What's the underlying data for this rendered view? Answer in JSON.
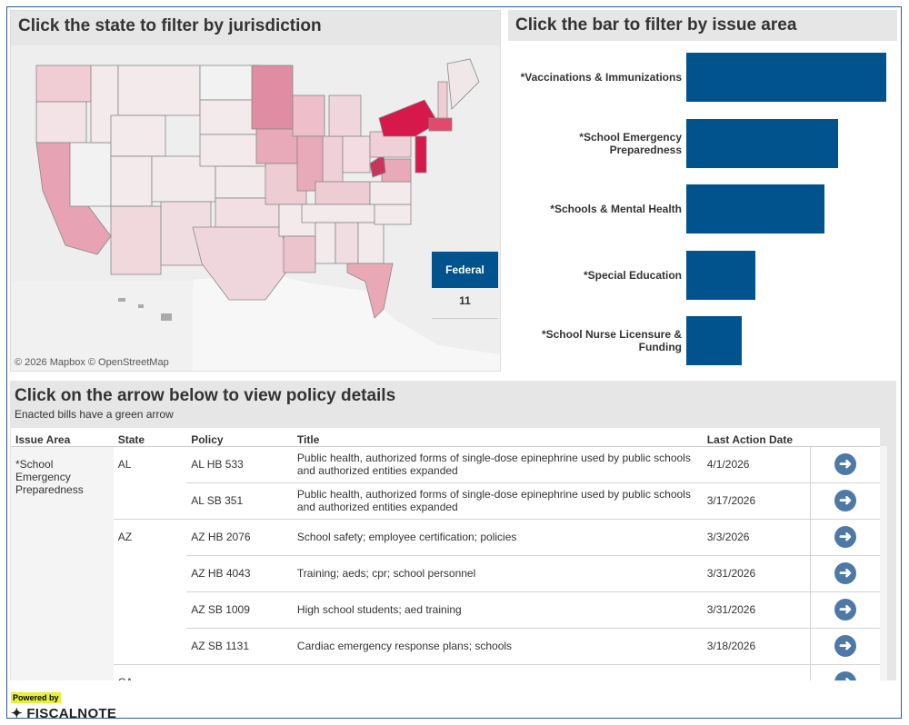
{
  "map_panel": {
    "title": "Click the state to filter by jurisdiction",
    "credit": "© 2026 Mapbox © OpenStreetMap",
    "federal_button": "Federal",
    "federal_count": "11",
    "highlight_color": "#d6194a"
  },
  "bar_panel": {
    "title": "Click the bar to filter by issue area",
    "bar_color": "#00538c",
    "chart_data": {
      "type": "bar",
      "orientation": "horizontal",
      "categories": [
        "*Vaccinations & Immunizations",
        "*School Emergency Preparedness",
        "*Schools & Mental Health",
        "*Special Education",
        "*School Nurse Licensure & Funding"
      ],
      "values": [
        29,
        22,
        20,
        10,
        8
      ]
    }
  },
  "table_panel": {
    "title": "Click on the arrow below to view policy details",
    "subtitle": "Enacted bills have a green arrow",
    "columns": [
      "Issue Area",
      "State",
      "Policy",
      "Title",
      "Last Action Date"
    ],
    "issue_area": "*School Emergency Preparedness",
    "groups": [
      {
        "state": "AL",
        "rows": [
          {
            "policy": "AL HB 533",
            "title": "Public health, authorized forms of single-dose epinephrine used by public schools and authorized entities expanded",
            "date": "4/1/2026"
          },
          {
            "policy": "AL SB 351",
            "title": "Public health, authorized forms of single-dose epinephrine used by public schools and authorized entities expanded",
            "date": "3/17/2026"
          }
        ]
      },
      {
        "state": "AZ",
        "rows": [
          {
            "policy": "AZ HB 2076",
            "title": "School safety; employee certification; policies",
            "date": "3/3/2026"
          },
          {
            "policy": "AZ HB 4043",
            "title": "Training; aeds; cpr; school personnel",
            "date": "3/31/2026"
          },
          {
            "policy": "AZ SB 1009",
            "title": "High school students; aed training",
            "date": "3/31/2026"
          },
          {
            "policy": "AZ SB 1131",
            "title": "Cardiac emergency response plans; schools",
            "date": "3/18/2026"
          }
        ]
      },
      {
        "state": "CA",
        "rows": []
      }
    ]
  },
  "footer": {
    "powered_by": "Powered by",
    "brand": "FISCALNOTE"
  }
}
